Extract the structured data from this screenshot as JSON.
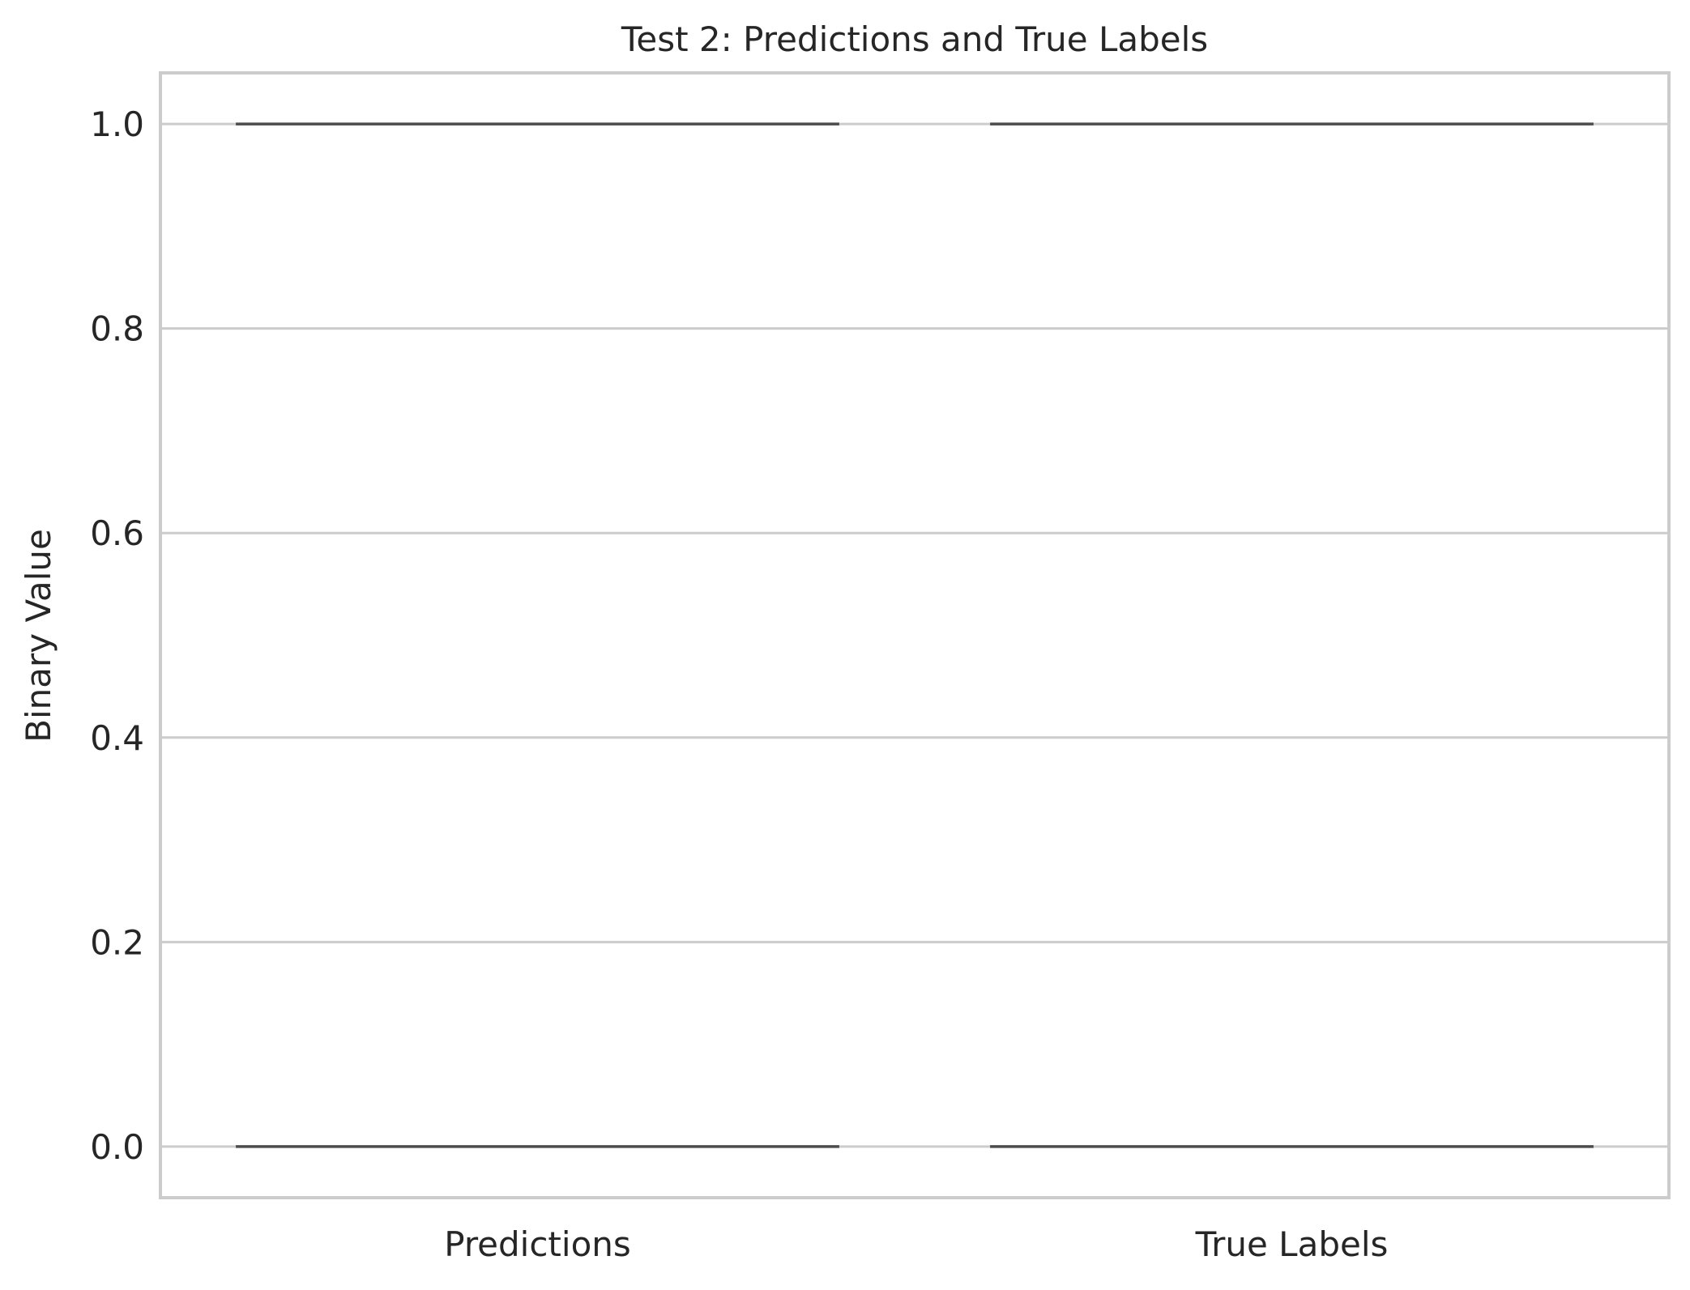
{
  "chart_data": {
    "type": "violin",
    "title": "Test 2: Predictions and True Labels",
    "xlabel": "",
    "ylabel": "Binary Value",
    "categories": [
      "Predictions",
      "True Labels"
    ],
    "ylim": [
      -0.05,
      1.05
    ],
    "yticks": [
      0.0,
      0.2,
      0.4,
      0.6,
      0.8,
      1.0
    ],
    "ytick_labels": [
      "0.0",
      "0.2",
      "0.4",
      "0.6",
      "0.8",
      "1.0"
    ],
    "grid": true,
    "series": [
      {
        "category": "Predictions",
        "values": [
          0,
          1
        ]
      },
      {
        "category": "True Labels",
        "values": [
          0,
          1
        ]
      }
    ],
    "colors": {
      "grid": "#cccccc",
      "spine": "#cccccc",
      "marker_line": "#4c4c4c",
      "text": "#262626"
    }
  }
}
